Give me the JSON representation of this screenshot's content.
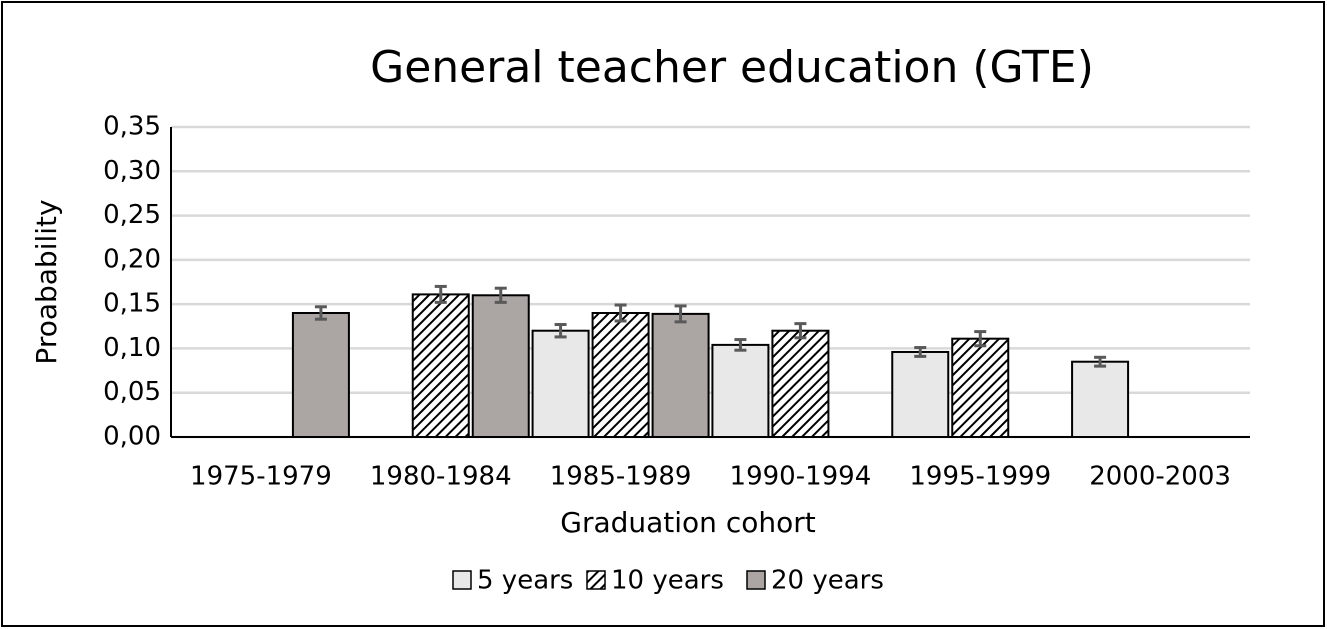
{
  "chart_data": {
    "type": "bar",
    "title": "General teacher education (GTE)",
    "x_label": "Graduation cohort",
    "y_label": "Proabability",
    "categories": [
      "1975-1979",
      "1980-1984",
      "1985-1989",
      "1990-1994",
      "1995-1999",
      "2000-2003"
    ],
    "series": [
      {
        "name": "5 years",
        "color": "#e8e8e8",
        "hatch": false,
        "values": [
          0,
          0,
          0.12,
          0.104,
          0.096,
          0.085
        ],
        "errors": [
          null,
          null,
          0.007,
          0.006,
          0.005,
          0.005
        ]
      },
      {
        "name": "10 years",
        "color": "#000000",
        "hatch": true,
        "values": [
          0,
          0.161,
          0.14,
          0.12,
          0.111,
          0
        ],
        "errors": [
          null,
          0.009,
          0.009,
          0.008,
          0.008,
          null
        ]
      },
      {
        "name": "20 years",
        "color": "#aba5a4",
        "hatch": false,
        "values": [
          0.14,
          0.16,
          0.139,
          0,
          0,
          0
        ],
        "errors": [
          0.007,
          0.008,
          0.009,
          null,
          null,
          null
        ]
      }
    ],
    "ylim": [
      0,
      0.35
    ],
    "yticks": [
      {
        "value": 0,
        "label": "0,00"
      },
      {
        "value": 0.05,
        "label": "0,05"
      },
      {
        "value": 0.1,
        "label": "0,10"
      },
      {
        "value": 0.15,
        "label": "0,15"
      },
      {
        "value": 0.2,
        "label": "0,20"
      },
      {
        "value": 0.25,
        "label": "0,25"
      },
      {
        "value": 0.3,
        "label": "0,30"
      },
      {
        "value": 0.35,
        "label": "0,35"
      }
    ],
    "grid": true,
    "legend": "bottom"
  }
}
